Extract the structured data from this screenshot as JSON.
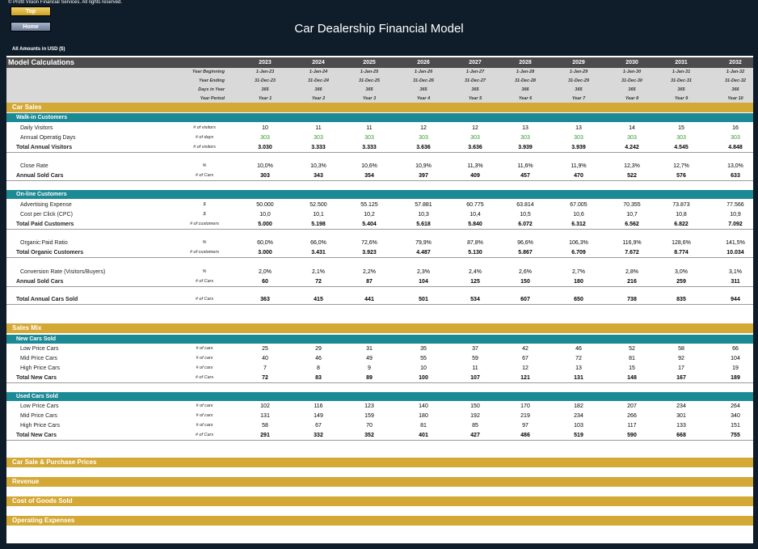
{
  "copyright": "© Profit Vision Financial Services. All rights reserved.",
  "nav": {
    "top": "Top",
    "home": "Home"
  },
  "title": "Car Dealership Financial Model",
  "amounts_note": "All Amounts in  USD ($)",
  "header": {
    "label": "Model Calculations",
    "years": [
      "2023",
      "2024",
      "2025",
      "2026",
      "2027",
      "2028",
      "2029",
      "2030",
      "2031",
      "2032"
    ]
  },
  "date_rows": [
    {
      "label": "Year Beginning",
      "values": [
        "1-Jan-23",
        "1-Jan-24",
        "1-Jan-25",
        "1-Jan-26",
        "1-Jan-27",
        "1-Jan-28",
        "1-Jan-29",
        "1-Jan-30",
        "1-Jan-31",
        "1-Jan-32"
      ]
    },
    {
      "label": "Year Ending",
      "values": [
        "31-Dec-23",
        "31-Dec-24",
        "31-Dec-25",
        "31-Dec-26",
        "31-Dec-27",
        "31-Dec-28",
        "31-Dec-29",
        "31-Dec-30",
        "31-Dec-31",
        "31-Dec-32"
      ]
    },
    {
      "label": "Days in Year",
      "values": [
        "365",
        "366",
        "365",
        "365",
        "365",
        "366",
        "365",
        "365",
        "365",
        "366"
      ]
    },
    {
      "label": "Year Period",
      "values": [
        "Year 1",
        "Year 2",
        "Year 3",
        "Year 4",
        "Year 5",
        "Year 6",
        "Year 7",
        "Year 8",
        "Year 9",
        "Year 10"
      ]
    }
  ],
  "sections": {
    "car_sales": "Car Sales",
    "walk_in": "Walk-in Customers",
    "online": "On-line Customers",
    "sales_mix": "Sales Mix",
    "new_cars": "New Cars Sold",
    "used_cars": "Used Cars Sold",
    "prices": "Car Sale & Purchase Prices",
    "revenue": "Revenue",
    "cogs": "Cost of Goods Sold",
    "opex": "Operating Expenses"
  },
  "rows": {
    "daily_visitors": {
      "label": "Daily Visitors",
      "unit": "# of visitors",
      "values": [
        "10",
        "11",
        "11",
        "12",
        "12",
        "13",
        "13",
        "14",
        "15",
        "16"
      ]
    },
    "operating_days": {
      "label": "Annual Operatig Days",
      "unit": "# of days",
      "values": [
        "303",
        "303",
        "303",
        "303",
        "303",
        "303",
        "303",
        "303",
        "303",
        "303"
      ]
    },
    "annual_visitors": {
      "label": "Total Annual Visitors",
      "unit": "# of visitors",
      "values": [
        "3.030",
        "3.333",
        "3.333",
        "3.636",
        "3.636",
        "3.939",
        "3.939",
        "4.242",
        "4.545",
        "4.848"
      ]
    },
    "close_rate": {
      "label": "Close Rate",
      "unit": "%",
      "values": [
        "10,0%",
        "10,3%",
        "10,6%",
        "10,9%",
        "11,3%",
        "11,6%",
        "11,9%",
        "12,3%",
        "12,7%",
        "13,0%"
      ]
    },
    "walkin_sold": {
      "label": "Annual Sold Cars",
      "unit": "# of Cars",
      "values": [
        "303",
        "343",
        "354",
        "397",
        "409",
        "457",
        "470",
        "522",
        "576",
        "633"
      ]
    },
    "ad_expense": {
      "label": "Advertising Expense",
      "unit": "$",
      "values": [
        "50.000",
        "52.500",
        "55.125",
        "57.881",
        "60.775",
        "63.814",
        "67.005",
        "70.355",
        "73.873",
        "77.566"
      ]
    },
    "cpc": {
      "label": "Cost per Click (CPC)",
      "unit": "$",
      "values": [
        "10,0",
        "10,1",
        "10,2",
        "10,3",
        "10,4",
        "10,5",
        "10,6",
        "10,7",
        "10,8",
        "10,9"
      ]
    },
    "paid_customers": {
      "label": "Total Paid Customers",
      "unit": "# of customers",
      "values": [
        "5.000",
        "5.198",
        "5.404",
        "5.618",
        "5.840",
        "6.072",
        "6.312",
        "6.562",
        "6.822",
        "7.092"
      ]
    },
    "organic_ratio": {
      "label": "Organic:Paid Ratio",
      "unit": "%",
      "values": [
        "60,0%",
        "66,0%",
        "72,6%",
        "79,9%",
        "87,8%",
        "96,6%",
        "106,3%",
        "116,9%",
        "128,6%",
        "141,5%"
      ]
    },
    "organic_customers": {
      "label": "Total Organic Customers",
      "unit": "# of customers",
      "values": [
        "3.000",
        "3.431",
        "3.923",
        "4.487",
        "5.130",
        "5.867",
        "6.709",
        "7.672",
        "8.774",
        "10.034"
      ]
    },
    "conversion_rate": {
      "label": "Conversion Rate (Visitors/Buyers)",
      "unit": "%",
      "values": [
        "2,0%",
        "2,1%",
        "2,2%",
        "2,3%",
        "2,4%",
        "2,6%",
        "2,7%",
        "2,8%",
        "3,0%",
        "3,1%"
      ]
    },
    "online_sold": {
      "label": "Annual Sold Cars",
      "unit": "# of Cars",
      "values": [
        "60",
        "72",
        "87",
        "104",
        "125",
        "150",
        "180",
        "216",
        "259",
        "311"
      ]
    },
    "total_sold": {
      "label": "Total Annual Cars Sold",
      "unit": "# of Cars",
      "values": [
        "363",
        "415",
        "441",
        "501",
        "534",
        "607",
        "650",
        "738",
        "835",
        "944"
      ]
    },
    "new_low": {
      "label": "Low Price Cars",
      "unit": "# of cars",
      "values": [
        "25",
        "29",
        "31",
        "35",
        "37",
        "42",
        "46",
        "52",
        "58",
        "66"
      ]
    },
    "new_mid": {
      "label": "Mid Price Cars",
      "unit": "# of cars",
      "values": [
        "40",
        "46",
        "49",
        "55",
        "59",
        "67",
        "72",
        "81",
        "92",
        "104"
      ]
    },
    "new_high": {
      "label": "High Price Cars",
      "unit": "# of cars",
      "values": [
        "7",
        "8",
        "9",
        "10",
        "11",
        "12",
        "13",
        "15",
        "17",
        "19"
      ]
    },
    "new_total": {
      "label": "Total New Cars",
      "unit": "# of Cars",
      "values": [
        "72",
        "83",
        "89",
        "100",
        "107",
        "121",
        "131",
        "148",
        "167",
        "189"
      ]
    },
    "used_low": {
      "label": "Low Price Cars",
      "unit": "# of cars",
      "values": [
        "102",
        "116",
        "123",
        "140",
        "150",
        "170",
        "182",
        "207",
        "234",
        "264"
      ]
    },
    "used_mid": {
      "label": "Mid Price Cars",
      "unit": "# of cars",
      "values": [
        "131",
        "149",
        "159",
        "180",
        "192",
        "219",
        "234",
        "266",
        "301",
        "340"
      ]
    },
    "used_high": {
      "label": "High Price Cars",
      "unit": "# of cars",
      "values": [
        "58",
        "67",
        "70",
        "81",
        "85",
        "97",
        "103",
        "117",
        "133",
        "151"
      ]
    },
    "used_total": {
      "label": "Total New Cars",
      "unit": "# of Cars",
      "values": [
        "291",
        "332",
        "352",
        "401",
        "427",
        "486",
        "519",
        "590",
        "668",
        "755"
      ]
    }
  }
}
